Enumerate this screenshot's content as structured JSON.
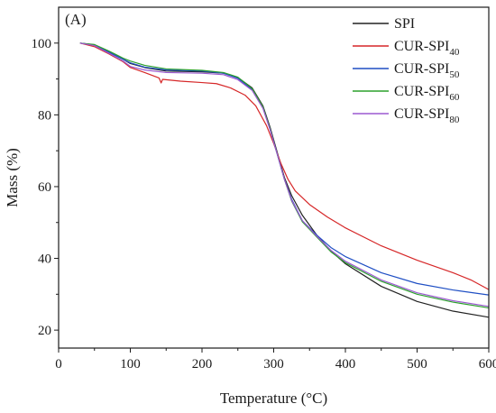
{
  "chart_data": {
    "type": "line",
    "panel_label": "(A)",
    "xlabel": "Temperature (°C)",
    "ylabel": "Mass (%)",
    "xlim": [
      0,
      600
    ],
    "ylim": [
      15,
      110
    ],
    "xticks": [
      0,
      100,
      200,
      300,
      400,
      500,
      600
    ],
    "yticks": [
      20,
      40,
      60,
      80,
      100
    ],
    "grid": false,
    "legend_position": "top-right",
    "series": [
      {
        "name": "SPI",
        "name_main": "SPI",
        "name_sub": "",
        "color": "#222222",
        "points": [
          [
            30,
            100
          ],
          [
            50,
            99.5
          ],
          [
            70,
            97.5
          ],
          [
            90,
            95.5
          ],
          [
            100,
            94.3
          ],
          [
            120,
            93.2
          ],
          [
            150,
            92.2
          ],
          [
            200,
            92
          ],
          [
            230,
            91.6
          ],
          [
            250,
            90.4
          ],
          [
            270,
            87.5
          ],
          [
            285,
            82.5
          ],
          [
            295,
            76.5
          ],
          [
            305,
            69.5
          ],
          [
            315,
            62.5
          ],
          [
            325,
            57.5
          ],
          [
            340,
            52
          ],
          [
            360,
            46.5
          ],
          [
            380,
            42
          ],
          [
            400,
            38.5
          ],
          [
            450,
            32.2
          ],
          [
            500,
            28
          ],
          [
            550,
            25.3
          ],
          [
            600,
            23.6
          ]
        ]
      },
      {
        "name": "CUR-SPI40",
        "name_main": "CUR-SPI",
        "name_sub": "40",
        "color": "#d62728",
        "points": [
          [
            30,
            100
          ],
          [
            50,
            99
          ],
          [
            70,
            97
          ],
          [
            90,
            94.8
          ],
          [
            100,
            93.2
          ],
          [
            120,
            91.8
          ],
          [
            140,
            90.3
          ],
          [
            143,
            88.9
          ],
          [
            145,
            89.9
          ],
          [
            170,
            89.4
          ],
          [
            200,
            89
          ],
          [
            220,
            88.7
          ],
          [
            240,
            87.5
          ],
          [
            260,
            85.5
          ],
          [
            275,
            82.5
          ],
          [
            290,
            77
          ],
          [
            300,
            72
          ],
          [
            310,
            66.5
          ],
          [
            320,
            62
          ],
          [
            330,
            58.8
          ],
          [
            350,
            55
          ],
          [
            375,
            51.5
          ],
          [
            400,
            48.5
          ],
          [
            450,
            43.5
          ],
          [
            500,
            39.5
          ],
          [
            550,
            36
          ],
          [
            575,
            34
          ],
          [
            600,
            31.3
          ]
        ]
      },
      {
        "name": "CUR-SPI50",
        "name_main": "CUR-SPI",
        "name_sub": "50",
        "color": "#1f4fc4",
        "points": [
          [
            30,
            100
          ],
          [
            50,
            99.5
          ],
          [
            70,
            97.5
          ],
          [
            90,
            95.5
          ],
          [
            100,
            94.5
          ],
          [
            120,
            93.3
          ],
          [
            150,
            92.5
          ],
          [
            200,
            92.2
          ],
          [
            230,
            91.6
          ],
          [
            250,
            90.2
          ],
          [
            270,
            87
          ],
          [
            285,
            82
          ],
          [
            295,
            76
          ],
          [
            305,
            69
          ],
          [
            315,
            62
          ],
          [
            325,
            56.5
          ],
          [
            340,
            50.5
          ],
          [
            360,
            46.5
          ],
          [
            380,
            43
          ],
          [
            400,
            40.5
          ],
          [
            450,
            36
          ],
          [
            500,
            33
          ],
          [
            550,
            31.2
          ],
          [
            600,
            29.8
          ]
        ]
      },
      {
        "name": "CUR-SPI60",
        "name_main": "CUR-SPI",
        "name_sub": "60",
        "color": "#2ca02c",
        "points": [
          [
            30,
            100
          ],
          [
            50,
            99.6
          ],
          [
            70,
            97.8
          ],
          [
            90,
            95.8
          ],
          [
            100,
            95
          ],
          [
            120,
            93.8
          ],
          [
            150,
            92.8
          ],
          [
            200,
            92.4
          ],
          [
            230,
            91.8
          ],
          [
            250,
            90.5
          ],
          [
            270,
            87.3
          ],
          [
            285,
            82.2
          ],
          [
            295,
            76
          ],
          [
            305,
            69
          ],
          [
            315,
            62
          ],
          [
            325,
            56
          ],
          [
            340,
            50.2
          ],
          [
            360,
            46
          ],
          [
            380,
            41.8
          ],
          [
            400,
            38.8
          ],
          [
            450,
            33.6
          ],
          [
            500,
            30
          ],
          [
            550,
            27.8
          ],
          [
            600,
            26.2
          ]
        ]
      },
      {
        "name": "CUR-SPI80",
        "name_main": "CUR-SPI",
        "name_sub": "80",
        "color": "#9b59d0",
        "points": [
          [
            30,
            100
          ],
          [
            50,
            99.3
          ],
          [
            70,
            97.2
          ],
          [
            90,
            95
          ],
          [
            100,
            93.5
          ],
          [
            120,
            92.5
          ],
          [
            150,
            91.8
          ],
          [
            200,
            91.6
          ],
          [
            230,
            91.2
          ],
          [
            250,
            89.8
          ],
          [
            270,
            86.8
          ],
          [
            285,
            81.8
          ],
          [
            295,
            75.8
          ],
          [
            305,
            69
          ],
          [
            315,
            62
          ],
          [
            325,
            56.2
          ],
          [
            340,
            50.5
          ],
          [
            360,
            46.2
          ],
          [
            380,
            42.2
          ],
          [
            400,
            39.2
          ],
          [
            450,
            34
          ],
          [
            500,
            30.4
          ],
          [
            550,
            28.2
          ],
          [
            600,
            26.6
          ]
        ]
      }
    ]
  }
}
